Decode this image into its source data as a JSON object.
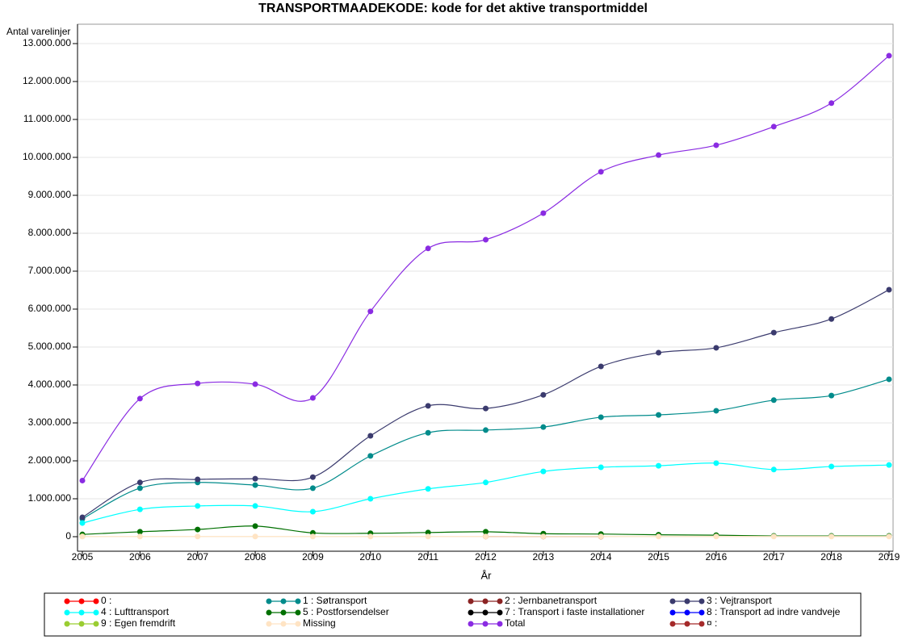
{
  "chart_data": {
    "type": "line",
    "title": "TRANSPORTMAADEKODE: kode for det aktive transportmiddel",
    "x_label": "År",
    "y_label": "Antal varelinjer",
    "x": [
      2005,
      2006,
      2007,
      2008,
      2009,
      2010,
      2011,
      2012,
      2013,
      2014,
      2015,
      2016,
      2017,
      2018,
      2019
    ],
    "xlim": [
      2005,
      2019
    ],
    "xticks": [
      2005,
      2006,
      2007,
      2008,
      2009,
      2010,
      2011,
      2012,
      2013,
      2014,
      2015,
      2016,
      2017,
      2018,
      2019
    ],
    "ylim": [
      0,
      13000000
    ],
    "yticks": [
      0,
      {
        "value": 1000000,
        "label": "1.000.000"
      },
      {
        "value": 2000000,
        "label": "2.000.000"
      },
      {
        "value": 3000000,
        "label": "3.000.000"
      },
      {
        "value": 4000000,
        "label": "4.000.000"
      },
      {
        "value": 5000000,
        "label": "5.000.000"
      },
      {
        "value": 6000000,
        "label": "6.000.000"
      },
      {
        "value": 7000000,
        "label": "7.000.000"
      },
      {
        "value": 8000000,
        "label": "8.000.000"
      },
      {
        "value": 9000000,
        "label": "9.000.000"
      },
      {
        "value": 10000000,
        "label": "10.000.000"
      },
      {
        "value": 11000000,
        "label": "11.000.000"
      },
      {
        "value": 12000000,
        "label": "12.000.000"
      },
      {
        "value": 13000000,
        "label": "13.000.000"
      }
    ],
    "grid": true,
    "series": [
      {
        "name": "0  :",
        "color": "#ff0000",
        "values": [
          null,
          null,
          null,
          null,
          null,
          null,
          null,
          null,
          null,
          null,
          null,
          null,
          null,
          null,
          null
        ]
      },
      {
        "name": "1  : Søtransport",
        "color": "#008b8b",
        "values": [
          470000,
          1280000,
          1430000,
          1360000,
          1280000,
          2130000,
          2740000,
          2810000,
          2890000,
          3150000,
          3210000,
          3320000,
          3600000,
          3720000,
          4150000
        ]
      },
      {
        "name": "2  : Jernbanetransport",
        "color": "#8b2323",
        "values": [
          null,
          null,
          null,
          null,
          null,
          null,
          null,
          5000,
          4000,
          3000,
          null,
          null,
          null,
          null,
          null
        ]
      },
      {
        "name": "3  : Vejtransport",
        "color": "#3b3b6e",
        "values": [
          510000,
          1430000,
          1510000,
          1530000,
          1570000,
          2660000,
          3450000,
          3380000,
          3740000,
          4490000,
          4850000,
          4980000,
          5380000,
          5740000,
          6510000
        ]
      },
      {
        "name": "4  : Lufttransport",
        "color": "#00ffff",
        "values": [
          360000,
          720000,
          810000,
          810000,
          660000,
          1000000,
          1260000,
          1430000,
          1720000,
          1830000,
          1870000,
          1940000,
          1770000,
          1850000,
          1890000
        ]
      },
      {
        "name": "5  : Postforsendelser",
        "color": "#007000",
        "values": [
          60000,
          130000,
          190000,
          280000,
          100000,
          90000,
          110000,
          130000,
          80000,
          70000,
          50000,
          40000,
          20000,
          20000,
          20000
        ]
      },
      {
        "name": "7  : Transport i faste installationer",
        "color": "#000000",
        "values": [
          null,
          null,
          null,
          null,
          null,
          null,
          null,
          null,
          null,
          null,
          null,
          null,
          null,
          null,
          null
        ]
      },
      {
        "name": "8  : Transport ad indre vandveje",
        "color": "#0000ff",
        "values": [
          null,
          null,
          null,
          null,
          null,
          null,
          null,
          null,
          null,
          null,
          null,
          null,
          null,
          null,
          null
        ]
      },
      {
        "name": "9  : Egen fremdrift",
        "color": "#9acd32",
        "values": [
          10000,
          null,
          null,
          null,
          null,
          null,
          null,
          null,
          null,
          null,
          null,
          null,
          null,
          null,
          null
        ]
      },
      {
        "name": "Missing",
        "color": "#ffe4c4",
        "values": [
          5000,
          5000,
          5000,
          5000,
          5000,
          5000,
          5000,
          5000,
          5000,
          5000,
          5000,
          5000,
          5000,
          5000,
          5000
        ]
      },
      {
        "name": "Total",
        "color": "#8a2be2",
        "values": [
          1480000,
          3640000,
          4040000,
          4020000,
          3660000,
          5940000,
          7600000,
          7830000,
          8530000,
          9620000,
          10060000,
          10320000,
          10810000,
          11430000,
          12680000
        ]
      },
      {
        "name": "¤  :",
        "color": "#a52a2a",
        "values": [
          null,
          null,
          null,
          null,
          null,
          null,
          null,
          null,
          null,
          null,
          null,
          null,
          null,
          null,
          null
        ]
      }
    ]
  }
}
